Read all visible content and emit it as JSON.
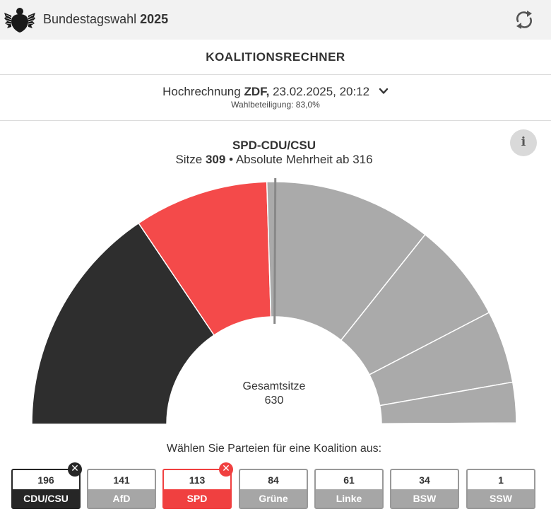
{
  "header": {
    "title_prefix": "Bundestagswahl",
    "title_year": "2025",
    "logo_icon": "bundesadler-icon",
    "refresh_icon": "refresh-icon"
  },
  "section_title": "KOALITIONSRECHNER",
  "projection": {
    "prefix": "Hochrechnung",
    "source": "ZDF,",
    "datetime": "23.02.2025, 20:12",
    "turnout": "Wahlbeteiligung: 83,0%"
  },
  "coalition": {
    "name": "SPD-CDU/CSU",
    "seats_prefix": "Sitze",
    "seats": "309",
    "seats_suffix": "• Absolute Mehrheit ab 316"
  },
  "info_label": "i",
  "center": {
    "label": "Gesamtsitze",
    "total": "630"
  },
  "prompt": "Wählen Sie Parteien für eine Koalition aus:",
  "colors": {
    "cdu": "#2e2e2e",
    "spd": "#f44a4a",
    "unselected": "#aaaaaa",
    "majority_line": "#888888"
  },
  "chart_data": {
    "type": "pie",
    "style": "half-donut parliament",
    "total": 630,
    "majority": 316,
    "series": [
      {
        "name": "CDU/CSU",
        "value": 196,
        "selected": true
      },
      {
        "name": "SPD",
        "value": 113,
        "selected": true
      },
      {
        "name": "AfD",
        "value": 141,
        "selected": false
      },
      {
        "name": "Grüne",
        "value": 84,
        "selected": false
      },
      {
        "name": "Linke",
        "value": 61,
        "selected": false
      },
      {
        "name": "BSW",
        "value": 34,
        "selected": false
      },
      {
        "name": "SSW",
        "value": 1,
        "selected": false
      }
    ]
  },
  "parties": [
    {
      "seats": "196",
      "name": "CDU/CSU",
      "selected": true
    },
    {
      "seats": "141",
      "name": "AfD",
      "selected": false
    },
    {
      "seats": "113",
      "name": "SPD",
      "selected": true
    },
    {
      "seats": "84",
      "name": "Grüne",
      "selected": false
    },
    {
      "seats": "61",
      "name": "Linke",
      "selected": false
    },
    {
      "seats": "34",
      "name": "BSW",
      "selected": false
    },
    {
      "seats": "1",
      "name": "SSW",
      "selected": false
    }
  ],
  "remove_symbol": "✕"
}
